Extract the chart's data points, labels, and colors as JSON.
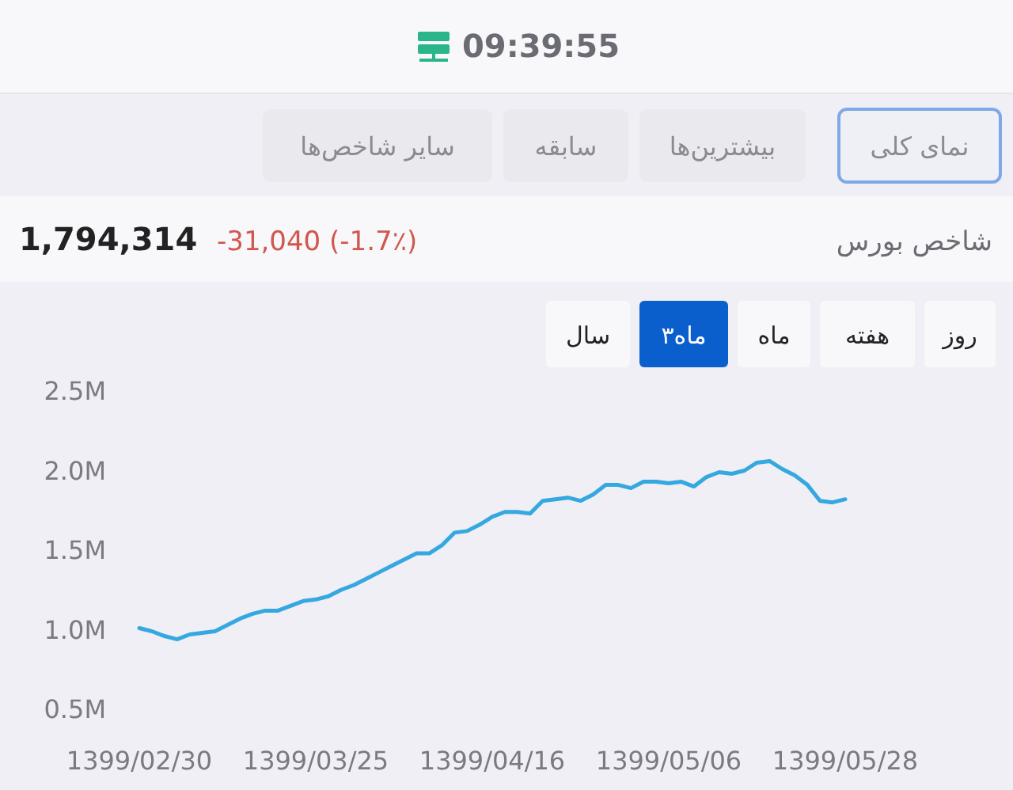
{
  "chart_data": {
    "type": "line",
    "title": "شاخص بورس",
    "annotations": [
      "09:39:55",
      "نمای کلی",
      "بیشترین‌ها",
      "سابقه",
      "سایر شاخص‌ها",
      "1,794,314",
      "-31,040 (-1.7٪)",
      "روز",
      "هفته",
      "ماه",
      "۳ماه",
      "سال"
    ],
    "categories": [
      "1399/02/30",
      null,
      null,
      null,
      null,
      null,
      null,
      null,
      null,
      null,
      null,
      null,
      null,
      null,
      "1399/03/25",
      null,
      null,
      null,
      null,
      null,
      null,
      null,
      null,
      null,
      null,
      null,
      null,
      null,
      "1399/04/16",
      null,
      null,
      null,
      null,
      null,
      null,
      null,
      null,
      null,
      null,
      null,
      null,
      null,
      "1399/05/06",
      null,
      null,
      null,
      null,
      null,
      null,
      null,
      null,
      null,
      null,
      null,
      null,
      null,
      "1399/05/28"
    ],
    "series": [
      {
        "color": "#35a8e0",
        "values": [
          1010000,
          990000,
          960000,
          940000,
          970000,
          980000,
          990000,
          1030000,
          1070000,
          1100000,
          1120000,
          1120000,
          1150000,
          1180000,
          1190000,
          1210000,
          1250000,
          1280000,
          1320000,
          1360000,
          1400000,
          1440000,
          1480000,
          1480000,
          1530000,
          1610000,
          1620000,
          1660000,
          1710000,
          1740000,
          1740000,
          1730000,
          1810000,
          1820000,
          1830000,
          1810000,
          1850000,
          1910000,
          1910000,
          1890000,
          1930000,
          1930000,
          1920000,
          1930000,
          1900000,
          1960000,
          1990000,
          1980000,
          2000000,
          2050000,
          2060000,
          2010000,
          1970000,
          1910000,
          1810000,
          1800000,
          1820000
        ]
      }
    ],
    "ylim": [
      500000,
      2500000
    ],
    "yticks": [
      {
        "value": 500000,
        "label": "0.5M"
      },
      {
        "value": 1000000,
        "label": "1.0M"
      },
      {
        "value": 1500000,
        "label": "1.5M"
      },
      {
        "value": 2000000,
        "label": "2.0M"
      },
      {
        "value": 2500000,
        "label": "2.5M"
      }
    ],
    "grid": false,
    "marker": "none",
    "line_style": "solid"
  }
}
